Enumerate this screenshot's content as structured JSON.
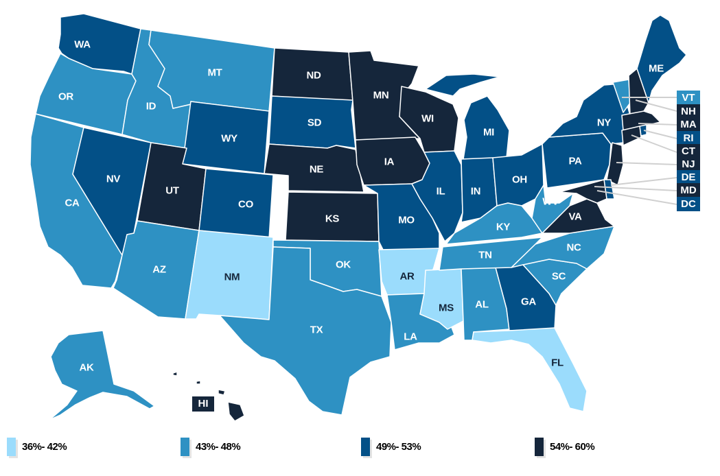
{
  "chart_data": {
    "type": "choropleth",
    "title": "",
    "legend": [
      {
        "label": "36%- 42%",
        "color": "#9bdcfc"
      },
      {
        "label": "43%- 48%",
        "color": "#2e91c3"
      },
      {
        "label": "49%- 53%",
        "color": "#035087"
      },
      {
        "label": "54%- 60%",
        "color": "#15263b"
      }
    ],
    "states": {
      "WA": "49%- 53%",
      "OR": "43%- 48%",
      "CA": "43%- 48%",
      "NV": "49%- 53%",
      "ID": "43%- 48%",
      "MT": "43%- 48%",
      "WY": "49%- 53%",
      "UT": "54%- 60%",
      "AZ": "43%- 48%",
      "CO": "49%- 53%",
      "NM": "36%- 42%",
      "ND": "54%- 60%",
      "SD": "49%- 53%",
      "NE": "54%- 60%",
      "KS": "54%- 60%",
      "OK": "43%- 48%",
      "TX": "43%- 48%",
      "MN": "54%- 60%",
      "IA": "54%- 60%",
      "MO": "49%- 53%",
      "AR": "36%- 42%",
      "LA": "43%- 48%",
      "WI": "54%- 60%",
      "IL": "49%- 53%",
      "MS": "36%- 42%",
      "MI": "49%- 53%",
      "IN": "49%- 53%",
      "OH": "49%- 53%",
      "KY": "43%- 48%",
      "TN": "43%- 48%",
      "AL": "43%- 48%",
      "GA": "49%- 53%",
      "FL": "36%- 42%",
      "SC": "43%- 48%",
      "NC": "43%- 48%",
      "VA": "54%- 60%",
      "WV": "43%- 48%",
      "PA": "49%- 53%",
      "NY": "49%- 53%",
      "ME": "49%- 53%",
      "VT": "43%- 48%",
      "NH": "54%- 60%",
      "MA": "54%- 60%",
      "RI": "49%- 53%",
      "CT": "54%- 60%",
      "NJ": "54%- 60%",
      "DE": "49%- 53%",
      "MD": "54%- 60%",
      "DC": "49%- 53%",
      "AK": "43%- 48%",
      "HI": "54%- 60%"
    }
  },
  "labels": {
    "WA": "WA",
    "OR": "OR",
    "CA": "CA",
    "NV": "NV",
    "ID": "ID",
    "MT": "MT",
    "WY": "WY",
    "UT": "UT",
    "AZ": "AZ",
    "CO": "CO",
    "NM": "NM",
    "ND": "ND",
    "SD": "SD",
    "NE": "NE",
    "KS": "KS",
    "OK": "OK",
    "TX": "TX",
    "MN": "MN",
    "IA": "IA",
    "MO": "MO",
    "AR": "AR",
    "LA": "LA",
    "WI": "WI",
    "IL": "IL",
    "MS": "MS",
    "MI": "MI",
    "IN": "IN",
    "OH": "OH",
    "KY": "KY",
    "TN": "TN",
    "AL": "AL",
    "GA": "GA",
    "FL": "FL",
    "SC": "SC",
    "NC": "NC",
    "VA": "VA",
    "WV": "WV",
    "PA": "PA",
    "NY": "NY",
    "ME": "ME",
    "AK": "AK",
    "HI": "HI"
  },
  "callouts": [
    {
      "abbr": "VT",
      "color": "#2e91c3"
    },
    {
      "abbr": "NH",
      "color": "#15263b"
    },
    {
      "abbr": "MA",
      "color": "#15263b"
    },
    {
      "abbr": "RI",
      "color": "#035087"
    },
    {
      "abbr": "CT",
      "color": "#15263b"
    },
    {
      "abbr": "NJ",
      "color": "#15263b"
    },
    {
      "abbr": "DE",
      "color": "#035087"
    },
    {
      "abbr": "MD",
      "color": "#15263b"
    },
    {
      "abbr": "DC",
      "color": "#035087"
    }
  ]
}
